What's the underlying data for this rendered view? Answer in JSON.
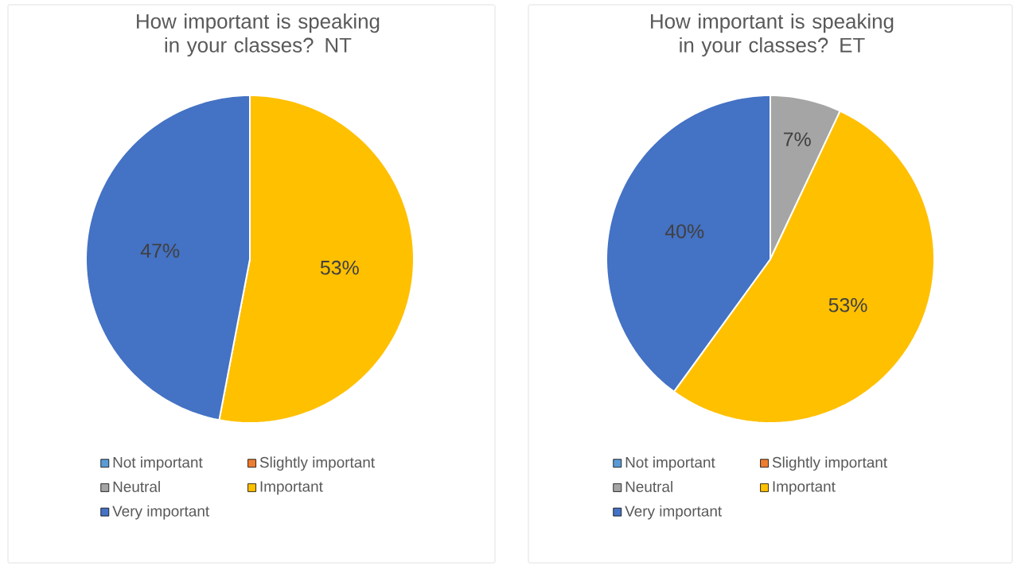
{
  "chart_data": [
    {
      "type": "pie",
      "title": "How important is speaking in your classes? NT",
      "categories": [
        "Not important",
        "Slightly important",
        "Neutral",
        "Important",
        "Very important"
      ],
      "values": [
        0,
        0,
        0,
        53,
        47
      ],
      "colors": [
        "#5b9bd5",
        "#ed7d31",
        "#a5a5a5",
        "#ffc000",
        "#4472c4"
      ],
      "value_labels": [
        null,
        null,
        null,
        "53%",
        "47%"
      ],
      "legend": "bottom"
    },
    {
      "type": "pie",
      "title": "How important is speaking in your classes?  ET",
      "categories": [
        "Not important",
        "Slightly important",
        "Neutral",
        "Important",
        "Very important"
      ],
      "values": [
        0,
        0,
        7,
        53,
        40
      ],
      "colors": [
        "#5b9bd5",
        "#ed7d31",
        "#a5a5a5",
        "#ffc000",
        "#4472c4"
      ],
      "value_labels": [
        null,
        null,
        "7%",
        "53%",
        "40%"
      ],
      "legend": "bottom"
    }
  ]
}
